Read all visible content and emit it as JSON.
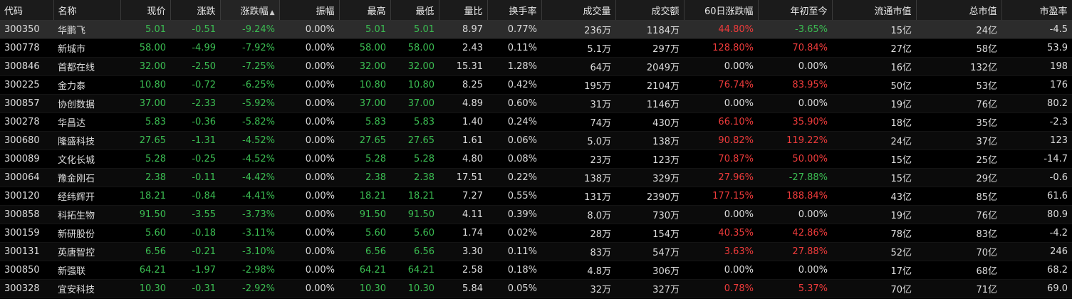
{
  "columns": [
    "代码",
    "名称",
    "现价",
    "涨跌",
    "涨跌幅",
    "振幅",
    "最高",
    "最低",
    "量比",
    "换手率",
    "成交量",
    "成交额",
    "60日涨跌幅",
    "年初至今",
    "流通市值",
    "总市值",
    "市盈率"
  ],
  "sort_column": "涨跌幅",
  "colors": {
    "up": "#ef3b3b",
    "down": "#3bbd52",
    "neutral": "#dcdcdc"
  },
  "rows": [
    {
      "code": "300350",
      "name": "华鹏飞",
      "price": "5.01",
      "change": "-0.51",
      "pct": "-9.24%",
      "amp": "0.00%",
      "high": "5.01",
      "low": "5.01",
      "vr": "8.97",
      "turn": "0.77%",
      "vol": "236万",
      "amt": "1184万",
      "d60": "44.80%",
      "ytd": "-3.65%",
      "float": "15亿",
      "total": "24亿",
      "pe": "-4.5"
    },
    {
      "code": "300778",
      "name": "新城市",
      "price": "58.00",
      "change": "-4.99",
      "pct": "-7.92%",
      "amp": "0.00%",
      "high": "58.00",
      "low": "58.00",
      "vr": "2.43",
      "turn": "0.11%",
      "vol": "5.1万",
      "amt": "297万",
      "d60": "128.80%",
      "ytd": "70.84%",
      "float": "27亿",
      "total": "58亿",
      "pe": "53.9"
    },
    {
      "code": "300846",
      "name": "首都在线",
      "price": "32.00",
      "change": "-2.50",
      "pct": "-7.25%",
      "amp": "0.00%",
      "high": "32.00",
      "low": "32.00",
      "vr": "15.31",
      "turn": "1.28%",
      "vol": "64万",
      "amt": "2049万",
      "d60": "0.00%",
      "ytd": "0.00%",
      "float": "16亿",
      "total": "132亿",
      "pe": "198"
    },
    {
      "code": "300225",
      "name": "金力泰",
      "price": "10.80",
      "change": "-0.72",
      "pct": "-6.25%",
      "amp": "0.00%",
      "high": "10.80",
      "low": "10.80",
      "vr": "8.25",
      "turn": "0.42%",
      "vol": "195万",
      "amt": "2104万",
      "d60": "76.74%",
      "ytd": "83.95%",
      "float": "50亿",
      "total": "53亿",
      "pe": "176"
    },
    {
      "code": "300857",
      "name": "协创数据",
      "price": "37.00",
      "change": "-2.33",
      "pct": "-5.92%",
      "amp": "0.00%",
      "high": "37.00",
      "low": "37.00",
      "vr": "4.89",
      "turn": "0.60%",
      "vol": "31万",
      "amt": "1146万",
      "d60": "0.00%",
      "ytd": "0.00%",
      "float": "19亿",
      "total": "76亿",
      "pe": "80.2"
    },
    {
      "code": "300278",
      "name": "华昌达",
      "price": "5.83",
      "change": "-0.36",
      "pct": "-5.82%",
      "amp": "0.00%",
      "high": "5.83",
      "low": "5.83",
      "vr": "1.40",
      "turn": "0.24%",
      "vol": "74万",
      "amt": "430万",
      "d60": "66.10%",
      "ytd": "35.90%",
      "float": "18亿",
      "total": "35亿",
      "pe": "-2.3"
    },
    {
      "code": "300680",
      "name": "隆盛科技",
      "price": "27.65",
      "change": "-1.31",
      "pct": "-4.52%",
      "amp": "0.00%",
      "high": "27.65",
      "low": "27.65",
      "vr": "1.61",
      "turn": "0.06%",
      "vol": "5.0万",
      "amt": "138万",
      "d60": "90.82%",
      "ytd": "119.22%",
      "float": "24亿",
      "total": "37亿",
      "pe": "123"
    },
    {
      "code": "300089",
      "name": "文化长城",
      "price": "5.28",
      "change": "-0.25",
      "pct": "-4.52%",
      "amp": "0.00%",
      "high": "5.28",
      "low": "5.28",
      "vr": "4.80",
      "turn": "0.08%",
      "vol": "23万",
      "amt": "123万",
      "d60": "70.87%",
      "ytd": "50.00%",
      "float": "15亿",
      "total": "25亿",
      "pe": "-14.7"
    },
    {
      "code": "300064",
      "name": "豫金刚石",
      "price": "2.38",
      "change": "-0.11",
      "pct": "-4.42%",
      "amp": "0.00%",
      "high": "2.38",
      "low": "2.38",
      "vr": "17.51",
      "turn": "0.22%",
      "vol": "138万",
      "amt": "329万",
      "d60": "27.96%",
      "ytd": "-27.88%",
      "float": "15亿",
      "total": "29亿",
      "pe": "-0.6"
    },
    {
      "code": "300120",
      "name": "经纬辉开",
      "price": "18.21",
      "change": "-0.84",
      "pct": "-4.41%",
      "amp": "0.00%",
      "high": "18.21",
      "low": "18.21",
      "vr": "7.27",
      "turn": "0.55%",
      "vol": "131万",
      "amt": "2390万",
      "d60": "177.15%",
      "ytd": "188.84%",
      "float": "43亿",
      "total": "85亿",
      "pe": "61.6"
    },
    {
      "code": "300858",
      "name": "科拓生物",
      "price": "91.50",
      "change": "-3.55",
      "pct": "-3.73%",
      "amp": "0.00%",
      "high": "91.50",
      "low": "91.50",
      "vr": "4.11",
      "turn": "0.39%",
      "vol": "8.0万",
      "amt": "730万",
      "d60": "0.00%",
      "ytd": "0.00%",
      "float": "19亿",
      "total": "76亿",
      "pe": "80.9"
    },
    {
      "code": "300159",
      "name": "新研股份",
      "price": "5.60",
      "change": "-0.18",
      "pct": "-3.11%",
      "amp": "0.00%",
      "high": "5.60",
      "low": "5.60",
      "vr": "1.74",
      "turn": "0.02%",
      "vol": "28万",
      "amt": "154万",
      "d60": "40.35%",
      "ytd": "42.86%",
      "float": "78亿",
      "total": "83亿",
      "pe": "-4.2"
    },
    {
      "code": "300131",
      "name": "英唐智控",
      "price": "6.56",
      "change": "-0.21",
      "pct": "-3.10%",
      "amp": "0.00%",
      "high": "6.56",
      "low": "6.56",
      "vr": "3.30",
      "turn": "0.11%",
      "vol": "83万",
      "amt": "547万",
      "d60": "3.63%",
      "ytd": "27.88%",
      "float": "52亿",
      "total": "70亿",
      "pe": "246"
    },
    {
      "code": "300850",
      "name": "新强联",
      "price": "64.21",
      "change": "-1.97",
      "pct": "-2.98%",
      "amp": "0.00%",
      "high": "64.21",
      "low": "64.21",
      "vr": "2.58",
      "turn": "0.18%",
      "vol": "4.8万",
      "amt": "306万",
      "d60": "0.00%",
      "ytd": "0.00%",
      "float": "17亿",
      "total": "68亿",
      "pe": "68.2"
    },
    {
      "code": "300328",
      "name": "宜安科技",
      "price": "10.30",
      "change": "-0.31",
      "pct": "-2.92%",
      "amp": "0.00%",
      "high": "10.30",
      "low": "10.30",
      "vr": "5.84",
      "turn": "0.05%",
      "vol": "32万",
      "amt": "327万",
      "d60": "0.78%",
      "ytd": "5.37%",
      "float": "70亿",
      "total": "71亿",
      "pe": "69.0"
    }
  ]
}
